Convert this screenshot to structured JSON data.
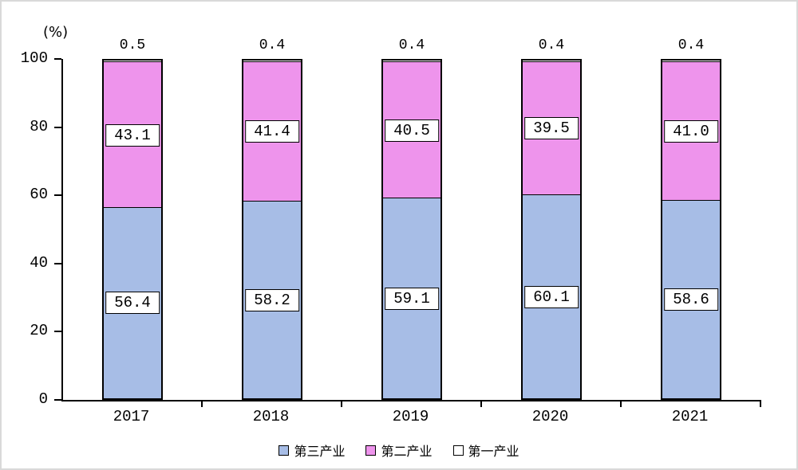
{
  "chart_data": {
    "type": "bar",
    "stacked": true,
    "title": "",
    "ylabel": "(%)",
    "xlabel": "",
    "ylim": [
      0,
      100
    ],
    "yticks": [
      0,
      20,
      40,
      60,
      80,
      100
    ],
    "grid": false,
    "legend_position": "bottom",
    "categories": [
      "2017",
      "2018",
      "2019",
      "2020",
      "2021"
    ],
    "series": [
      {
        "name": "第三产业",
        "color": "#a7bde6",
        "values": [
          56.4,
          58.2,
          59.1,
          60.1,
          58.6
        ]
      },
      {
        "name": "第二产业",
        "color": "#ee94ec",
        "values": [
          43.1,
          41.4,
          40.5,
          39.5,
          41.0
        ]
      },
      {
        "name": "第一产业",
        "color": "#ffffff",
        "values": [
          0.5,
          0.4,
          0.4,
          0.4,
          0.4
        ]
      }
    ]
  }
}
